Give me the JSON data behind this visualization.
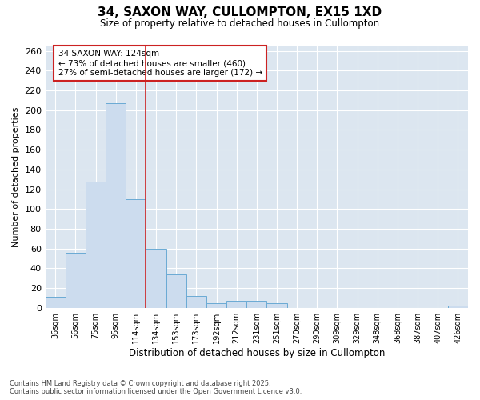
{
  "title_line1": "34, SAXON WAY, CULLOMPTON, EX15 1XD",
  "title_line2": "Size of property relative to detached houses in Cullompton",
  "xlabel": "Distribution of detached houses by size in Cullompton",
  "ylabel": "Number of detached properties",
  "categories": [
    "36sqm",
    "56sqm",
    "75sqm",
    "95sqm",
    "114sqm",
    "134sqm",
    "153sqm",
    "173sqm",
    "192sqm",
    "212sqm",
    "231sqm",
    "251sqm",
    "270sqm",
    "290sqm",
    "309sqm",
    "329sqm",
    "348sqm",
    "368sqm",
    "387sqm",
    "407sqm",
    "426sqm"
  ],
  "values": [
    11,
    56,
    128,
    207,
    110,
    60,
    34,
    12,
    5,
    7,
    7,
    5,
    0,
    0,
    0,
    0,
    0,
    0,
    0,
    0,
    2
  ],
  "bar_color": "#ccdcee",
  "bar_edge_color": "#6aaad4",
  "red_line_x": 4.5,
  "red_line_label": "34 SAXON WAY: 124sqm",
  "annotation_line2": "← 73% of detached houses are smaller (460)",
  "annotation_line3": "27% of semi-detached houses are larger (172) →",
  "annotation_box_color": "#ffffff",
  "annotation_box_edge_color": "#cc2222",
  "red_line_color": "#cc2222",
  "ylim": [
    0,
    265
  ],
  "yticks": [
    0,
    20,
    40,
    60,
    80,
    100,
    120,
    140,
    160,
    180,
    200,
    220,
    240,
    260
  ],
  "figure_bg": "#ffffff",
  "axes_bg": "#dce6f0",
  "grid_color": "#ffffff",
  "footer_line1": "Contains HM Land Registry data © Crown copyright and database right 2025.",
  "footer_line2": "Contains public sector information licensed under the Open Government Licence v3.0."
}
